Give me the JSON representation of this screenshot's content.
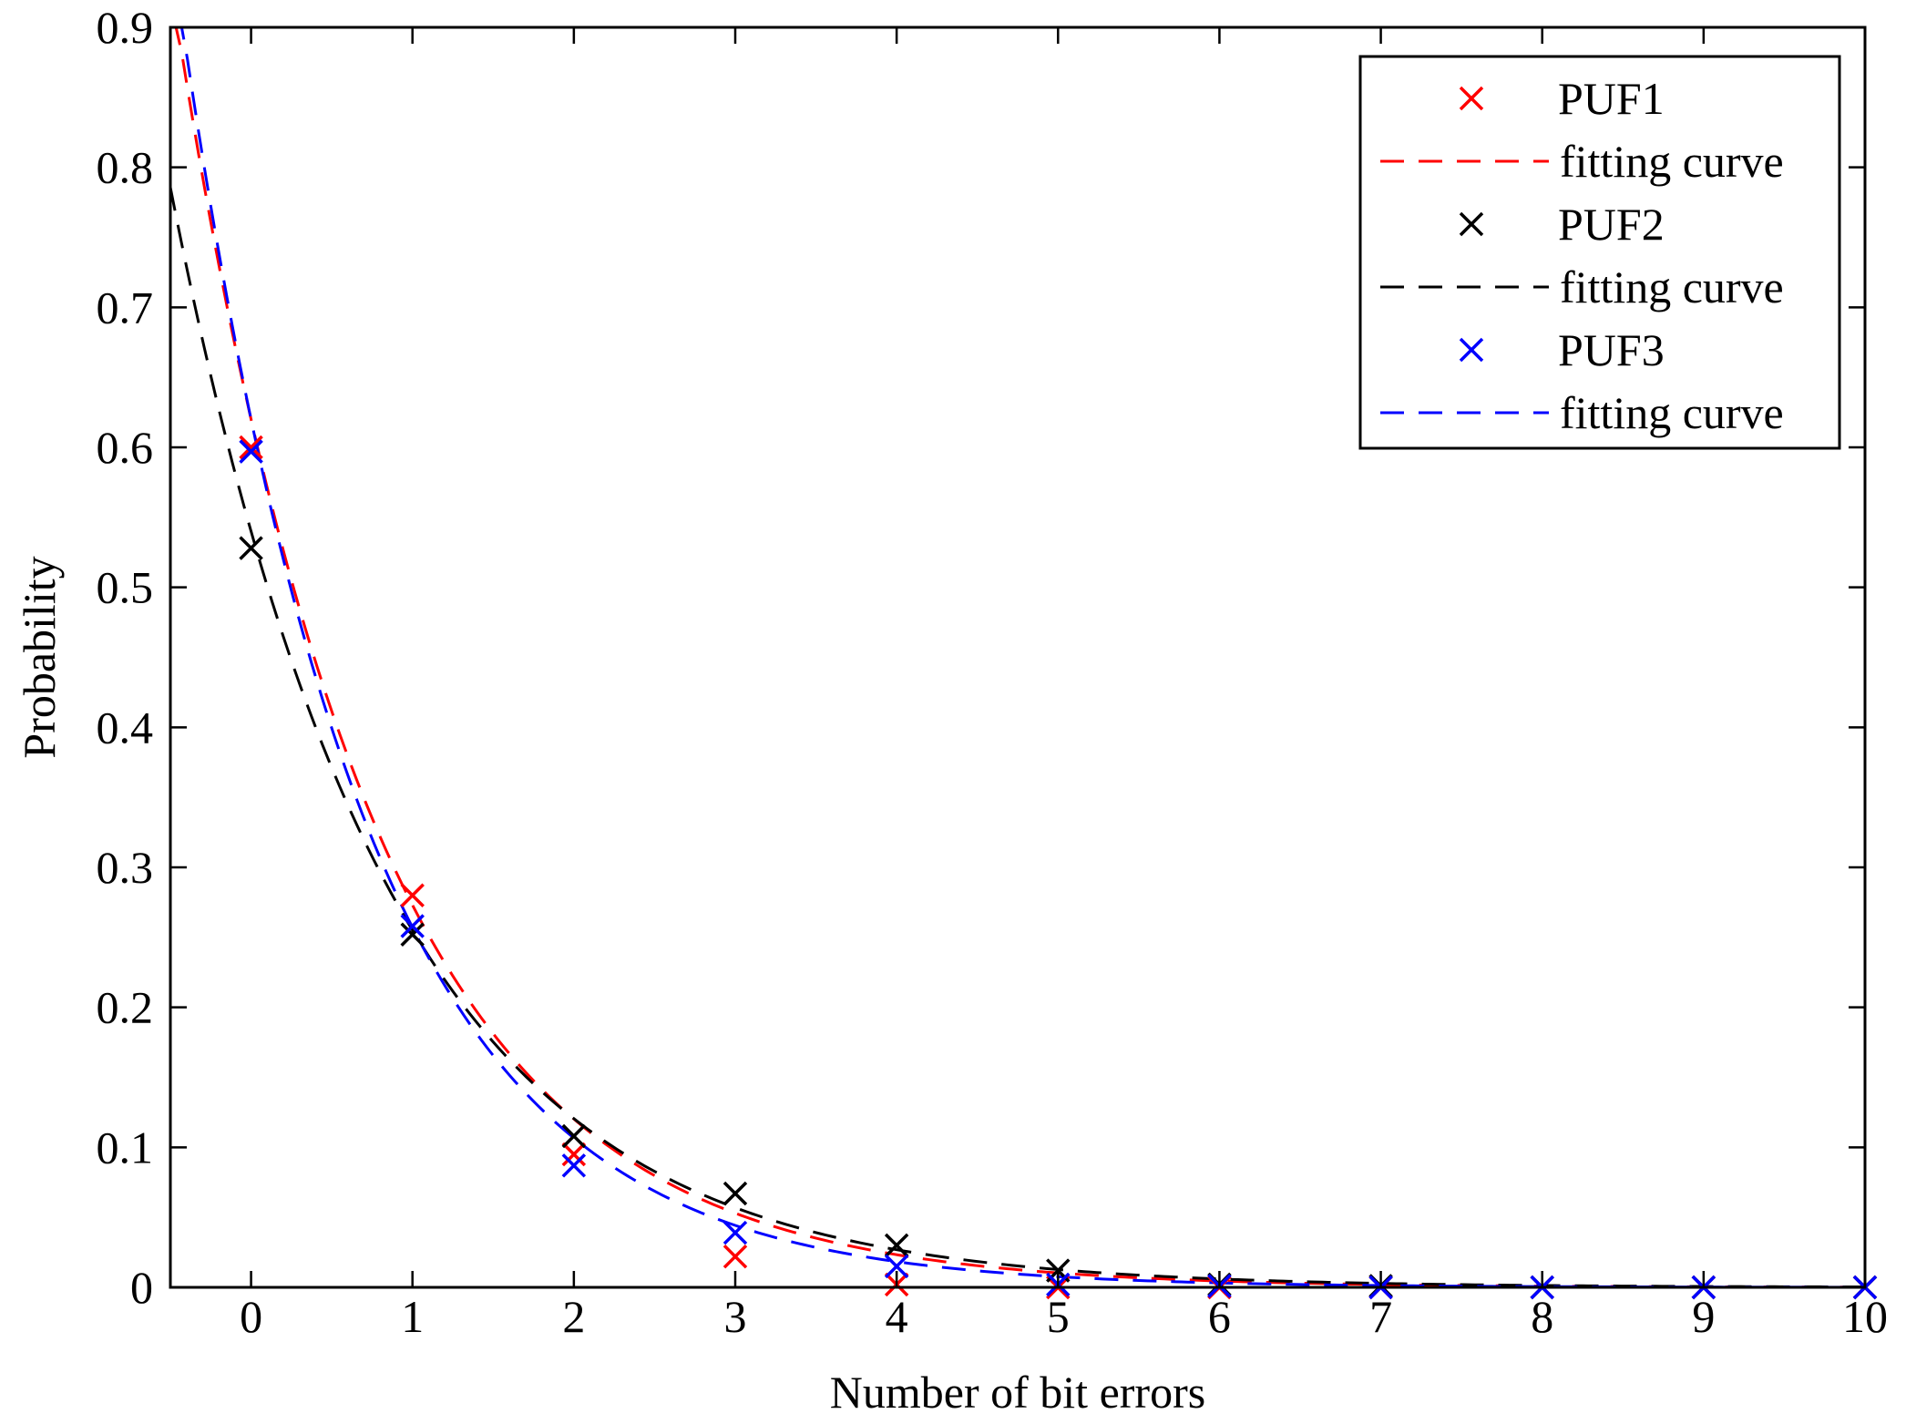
{
  "chart_data": {
    "type": "line",
    "title": "",
    "xlabel": "Number of bit errors",
    "ylabel": "Probability",
    "xlim": [
      -0.5,
      10
    ],
    "ylim": [
      0,
      0.9
    ],
    "xticks": [
      "0",
      "1",
      "2",
      "3",
      "4",
      "5",
      "6",
      "7",
      "8",
      "9",
      "10"
    ],
    "yticks": [
      "0",
      "0.1",
      "0.2",
      "0.3",
      "0.4",
      "0.5",
      "0.6",
      "0.7",
      "0.8",
      "0.9"
    ],
    "grid": false,
    "legend_position": "top-right",
    "series": [
      {
        "name": "PUF1",
        "kind": "markers",
        "marker": "x",
        "color": "#ff0000",
        "x": [
          0,
          1,
          2,
          3,
          4,
          5,
          6,
          7,
          8,
          9,
          10
        ],
        "values": [
          0.6,
          0.28,
          0.095,
          0.022,
          0.002,
          0.0,
          0.0,
          0.0,
          0.0,
          0.0,
          0.0
        ]
      },
      {
        "name": "fitting curve",
        "kind": "fit",
        "color": "#ff0000",
        "model": "exponential",
        "amplitude": 0.62,
        "rate": 0.82,
        "fit_x_range": [
          -0.5,
          10
        ]
      },
      {
        "name": "PUF2",
        "kind": "markers",
        "marker": "x",
        "color": "#000000",
        "x": [
          0,
          1,
          2,
          3,
          4,
          5,
          6,
          7,
          8,
          9,
          10
        ],
        "values": [
          0.528,
          0.252,
          0.108,
          0.067,
          0.03,
          0.012,
          0.002,
          0.001,
          0.0,
          0.0,
          0.0
        ]
      },
      {
        "name": "fitting curve",
        "kind": "fit",
        "color": "#000000",
        "model": "exponential",
        "amplitude": 0.54,
        "rate": 0.75,
        "fit_x_range": [
          -0.5,
          10
        ]
      },
      {
        "name": "PUF3",
        "kind": "markers",
        "marker": "x",
        "color": "#0000ff",
        "x": [
          0,
          1,
          2,
          3,
          4,
          5,
          6,
          7,
          8,
          9,
          10
        ],
        "values": [
          0.597,
          0.258,
          0.087,
          0.039,
          0.015,
          0.002,
          0.001,
          0.0,
          0.0,
          0.0,
          0.0
        ]
      },
      {
        "name": "fitting curve",
        "kind": "fit",
        "color": "#0000ff",
        "model": "exponential",
        "amplitude": 0.62,
        "rate": 0.88,
        "fit_x_range": [
          -0.5,
          10
        ]
      }
    ]
  }
}
